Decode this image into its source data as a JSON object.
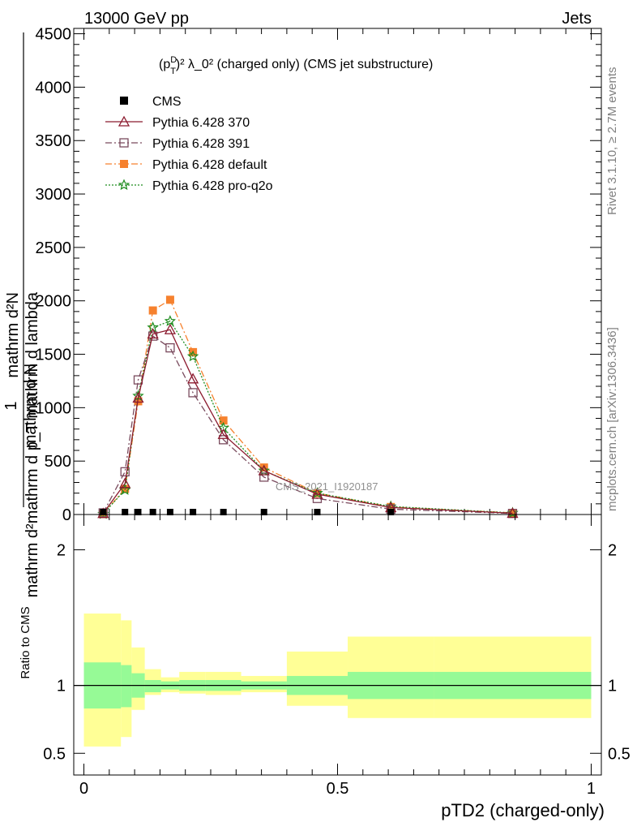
{
  "header": {
    "energy": "13000 GeV pp",
    "process": "Jets",
    "rivet_version": "Rivet 3.1.10, ≥ 2.7M events",
    "source": "mcplots.cern.ch [arXiv:1306.3436]",
    "analysis_id": "CMS_2021_I1920187"
  },
  "chart_data": [
    {
      "type": "line",
      "title_main": "(p",
      "title_sub": "T",
      "title_sup": "D",
      "title_rest": ")² λ_0² (charged only) (CMS jet substructure)",
      "ylabel_parts": [
        "1",
        "mathrm d N",
        "/",
        "mathrm d N",
        "mathrm d² mathrm d p_T mathrm d lambda"
      ],
      "ylabel_numerator": "mathrm d²N",
      "ylabel_denominator": "mathrm d p_T mathrm d lambda",
      "ylabel_frac_num": "1",
      "ylabel_frac_den": "mathrm d N",
      "ylim": [
        0,
        4550
      ],
      "yticks": [
        0,
        500,
        1000,
        1500,
        2000,
        2500,
        3000,
        3500,
        4000,
        4500
      ],
      "ytick_labels": [
        "0",
        "500",
        "1000",
        "1500",
        "2000",
        "2500",
        "3000",
        "3500",
        "4000",
        "4500"
      ],
      "xlim": [
        -0.02,
        1.02
      ],
      "log_scale": false,
      "legend_position": "top-left",
      "series": [
        {
          "name": "CMS",
          "color": "#000000",
          "marker": "filled-square",
          "x": [
            0.038,
            0.081,
            0.107,
            0.136,
            0.17,
            0.215,
            0.275,
            0.355,
            0.46,
            0.605
          ],
          "y": [
            0,
            0,
            0,
            0,
            0,
            0,
            0,
            0,
            0,
            0
          ]
        },
        {
          "name": "Pythia 6.428 370",
          "color": "#8b1a2e",
          "marker": "open-triangle",
          "line": "solid",
          "x": [
            0.038,
            0.081,
            0.107,
            0.136,
            0.17,
            0.215,
            0.275,
            0.355,
            0.46,
            0.605,
            0.845
          ],
          "y": [
            10,
            290,
            1090,
            1690,
            1730,
            1270,
            750,
            410,
            190,
            65,
            12
          ]
        },
        {
          "name": "Pythia 6.428 391",
          "color": "#7a4b5e",
          "marker": "open-square",
          "line": "dashdot",
          "x": [
            0.038,
            0.081,
            0.107,
            0.136,
            0.17,
            0.215,
            0.275,
            0.355,
            0.46,
            0.605,
            0.845
          ],
          "y": [
            15,
            400,
            1260,
            1670,
            1560,
            1140,
            700,
            350,
            150,
            50,
            10
          ]
        },
        {
          "name": "Pythia 6.428 default",
          "color": "#f6812e",
          "marker": "filled-square",
          "line": "dashdot",
          "x": [
            0.038,
            0.081,
            0.107,
            0.136,
            0.17,
            0.215,
            0.275,
            0.355,
            0.46,
            0.605,
            0.845
          ],
          "y": [
            5,
            240,
            1060,
            1910,
            2010,
            1520,
            880,
            440,
            200,
            70,
            15
          ]
        },
        {
          "name": "Pythia 6.428 pro-q2o",
          "color": "#1e8c1e",
          "marker": "star",
          "line": "dotted",
          "x": [
            0.038,
            0.081,
            0.107,
            0.136,
            0.17,
            0.215,
            0.275,
            0.355,
            0.46,
            0.605,
            0.845
          ],
          "y": [
            5,
            230,
            1110,
            1750,
            1810,
            1480,
            810,
            410,
            200,
            75,
            15
          ]
        }
      ]
    },
    {
      "type": "area",
      "ylabel": "Ratio to CMS",
      "xlabel": "pTD2 (charged-only)",
      "xlim": [
        -0.02,
        1.02
      ],
      "xticks": [
        0,
        0.5,
        1
      ],
      "xtick_labels": [
        "0",
        "0.5",
        "1"
      ],
      "ylim": [
        0.34,
        2.26
      ],
      "yticks": [
        0.5,
        1,
        2
      ],
      "ytick_labels": [
        "0.5",
        "1",
        "2"
      ],
      "reference_line": 1,
      "uncertainty_bands": {
        "bin_edges": [
          0,
          0.073,
          0.094,
          0.12,
          0.152,
          0.188,
          0.24,
          0.31,
          0.4,
          0.52,
          0.69,
          1.0
        ],
        "stat_low": [
          0.83,
          0.84,
          0.91,
          0.95,
          0.97,
          0.96,
          0.96,
          0.97,
          0.93,
          0.9,
          0.9
        ],
        "stat_high": [
          1.17,
          1.15,
          1.09,
          1.04,
          1.03,
          1.04,
          1.04,
          1.03,
          1.07,
          1.1,
          1.1
        ],
        "total_low": [
          0.55,
          0.62,
          0.82,
          0.93,
          0.95,
          0.94,
          0.93,
          0.95,
          0.85,
          0.76,
          0.76
        ],
        "total_high": [
          1.53,
          1.48,
          1.28,
          1.12,
          1.06,
          1.1,
          1.1,
          1.07,
          1.25,
          1.36,
          1.36
        ],
        "stat_color": "#96fa96",
        "total_color": "#ffff96"
      }
    }
  ]
}
